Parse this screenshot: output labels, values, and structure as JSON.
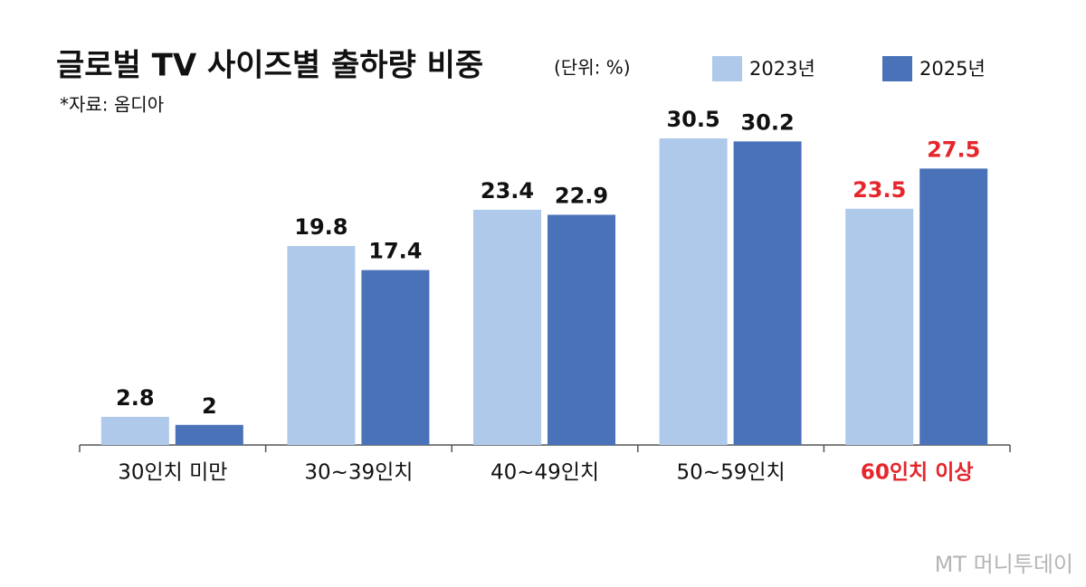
{
  "chart_data": {
    "type": "bar",
    "title": "글로벌 TV 사이즈별 출하량 비중",
    "unit": "(단위: %)",
    "source": "*자료: 옴디아",
    "watermark": "MT 머니투데이",
    "categories": [
      "30인치 미만",
      "30~39인치",
      "40~49인치",
      "50~59인치",
      "60인치 이상"
    ],
    "series": [
      {
        "name": "2023년",
        "color": "#aec9e9",
        "values": [
          2.8,
          19.8,
          23.4,
          30.5,
          23.5
        ]
      },
      {
        "name": "2025년",
        "color": "#4a72b8",
        "values": [
          2,
          17.4,
          22.9,
          30.2,
          27.5
        ]
      }
    ],
    "category_label_colors": [
      "#111111",
      "#111111",
      "#111111",
      "#111111",
      "#e5262c"
    ],
    "ylim": [
      0,
      35
    ]
  }
}
